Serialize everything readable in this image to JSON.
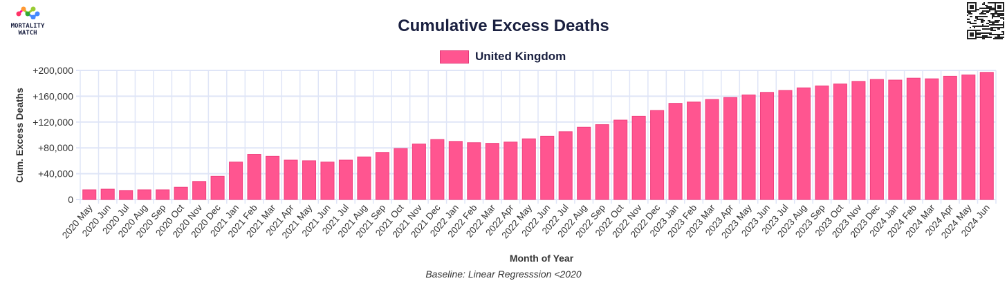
{
  "logo": {
    "line1": "MORTALITY",
    "line2": "WATCH"
  },
  "chart_data": {
    "type": "bar",
    "title": "Cumulative Excess Deaths",
    "legend": [
      {
        "label": "United Kingdom",
        "color": "#ff5590"
      }
    ],
    "legend_position": "top-center",
    "xlabel": "Month of Year",
    "ylabel": "Cum. Excess Deaths",
    "subtitle": "Baseline: Linear Regresssion <2020",
    "ylim": [
      0,
      200000
    ],
    "yticks": [
      0,
      40000,
      80000,
      120000,
      160000,
      200000
    ],
    "ytick_labels": [
      "0",
      "+40,000",
      "+80,000",
      "+120,000",
      "+160,000",
      "+200,000"
    ],
    "grid": true,
    "categories": [
      "2020 May",
      "2020 Jun",
      "2020 Jul",
      "2020 Aug",
      "2020 Sep",
      "2020 Oct",
      "2020 Nov",
      "2020 Dec",
      "2021 Jan",
      "2021 Feb",
      "2021 Mar",
      "2021 Apr",
      "2021 May",
      "2021 Jun",
      "2021 Jul",
      "2021 Aug",
      "2021 Sep",
      "2021 Oct",
      "2021 Nov",
      "2021 Dec",
      "2022 Jan",
      "2022 Feb",
      "2022 Mar",
      "2022 Apr",
      "2022 May",
      "2022 Jun",
      "2022 Jul",
      "2022 Aug",
      "2022 Sep",
      "2022 Oct",
      "2022 Nov",
      "2022 Dec",
      "2023 Jan",
      "2023 Feb",
      "2023 Mar",
      "2023 Apr",
      "2023 May",
      "2023 Jun",
      "2023 Jul",
      "2023 Aug",
      "2023 Sep",
      "2023 Oct",
      "2023 Nov",
      "2023 Dec",
      "2024 Jan",
      "2024 Feb",
      "2024 Mar",
      "2024 Apr",
      "2024 May",
      "2024 Jun"
    ],
    "series": [
      {
        "name": "United Kingdom",
        "values": [
          15000,
          16000,
          14000,
          15000,
          15000,
          19000,
          28000,
          36000,
          58000,
          70000,
          67000,
          61000,
          60000,
          58000,
          61000,
          66000,
          73000,
          79000,
          86000,
          93000,
          90000,
          88000,
          87000,
          89000,
          94000,
          98000,
          105000,
          112000,
          116000,
          123000,
          129000,
          138000,
          149000,
          151000,
          155000,
          158000,
          162000,
          166000,
          169000,
          173000,
          176000,
          179000,
          183000,
          186000,
          185000,
          188000,
          187000,
          191000,
          193000,
          197000
        ]
      }
    ]
  }
}
